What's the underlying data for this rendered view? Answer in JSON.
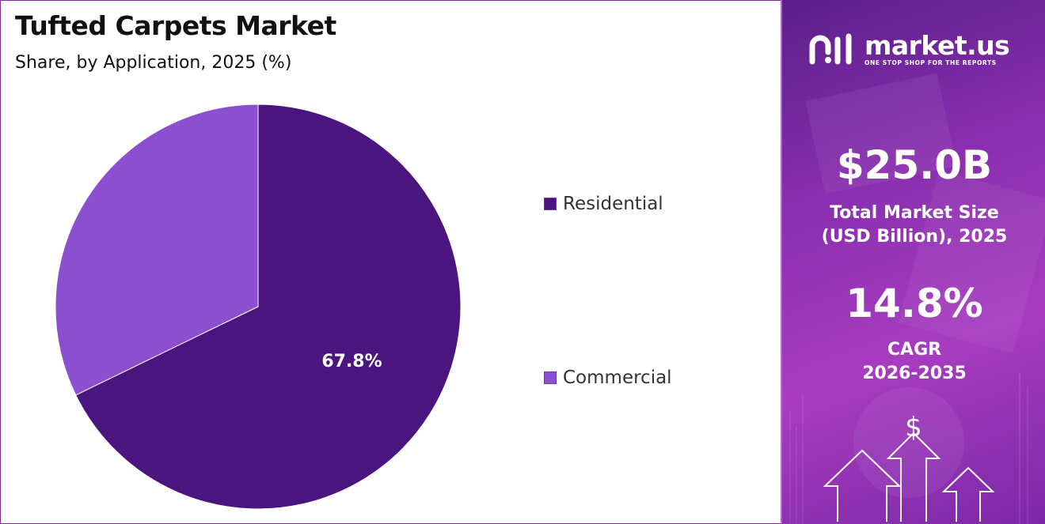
{
  "title": "Tufted Carpets Market",
  "subtitle": "Share, by Application, 2025 (%)",
  "chart_data": {
    "type": "pie",
    "title": "Tufted Carpets Market",
    "subtitle": "Share, by Application, 2025 (%)",
    "slices": [
      {
        "name": "Residential",
        "value": 67.8,
        "label": "67.8%",
        "color": "#4b1580"
      },
      {
        "name": "Commercial",
        "value": 32.2,
        "label": "",
        "color": "#8b4fd0"
      }
    ],
    "legend": "right"
  },
  "legend": {
    "items": [
      {
        "label": "Residential",
        "color": "#4b1580"
      },
      {
        "label": "Commercial",
        "color": "#8b4fd0"
      }
    ]
  },
  "panel": {
    "logo": {
      "name": "market.us",
      "tagline": "ONE STOP SHOP FOR THE REPORTS",
      "icon": "market-us-logo-icon"
    },
    "market_size": {
      "value": "$25.0B",
      "label_line1": "Total Market Size",
      "label_line2": "(USD Billion), 2025"
    },
    "cagr": {
      "value": "14.8%",
      "label_line1": "CAGR",
      "label_line2": "2026-2035"
    },
    "decoration": {
      "dollar_sign": "$",
      "icons": [
        "up-arrow-icon",
        "dollar-icon"
      ]
    }
  },
  "colors": {
    "residential": "#4b1580",
    "commercial": "#8b4fd0",
    "panel_accent": "#8a2fb0"
  }
}
